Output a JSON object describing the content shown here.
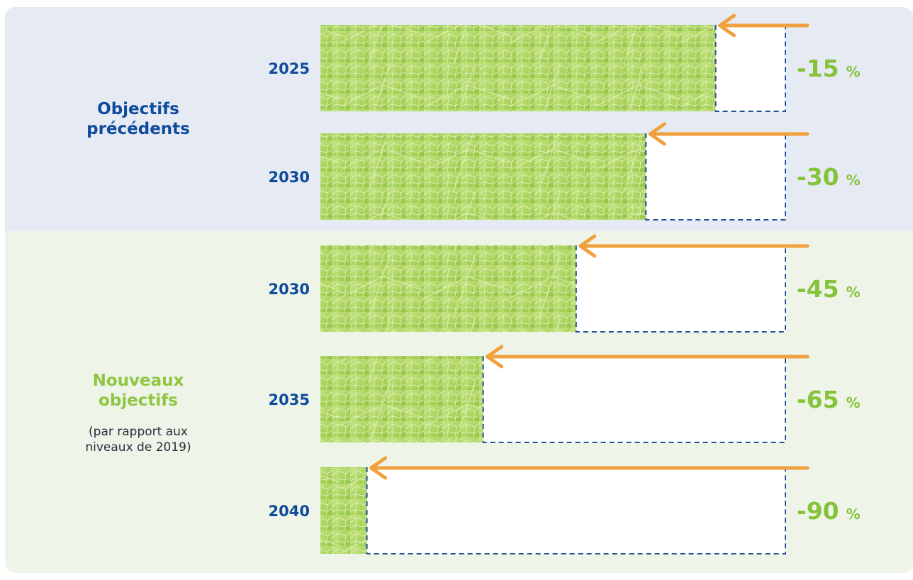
{
  "colors": {
    "top_bg": "#e6ebf3",
    "bottom_bg": "#eef5e8",
    "title_blue": "#0f4a9c",
    "title_green": "#8ec641",
    "leaf_light": "#c8e48a",
    "leaf_mid": "#a9d35a",
    "leaf_dark": "#8abd3c",
    "arrow": "#f0a03c",
    "dash": "#1f4f9a",
    "pct_green": "#86c23a"
  },
  "groups": {
    "previous": {
      "title_line1": "Objectifs",
      "title_line2": "précédents"
    },
    "new": {
      "title_line1": "Nouveaux",
      "title_line2": "objectifs",
      "sub_line1": "(par rapport aux",
      "sub_line2": "niveaux de 2019)"
    }
  },
  "chart_data": {
    "type": "bar",
    "categories": [
      "2025",
      "2030",
      "2030",
      "2035",
      "2040"
    ],
    "series": [
      {
        "values": [
          -15,
          -30,
          -45,
          -65,
          -90
        ]
      }
    ],
    "labels": [
      "-15 %",
      "-30 %",
      "-45 %",
      "-65 %",
      "-90 %"
    ],
    "groups": [
      {
        "name": "Objectifs précédents",
        "rows": [
          0,
          1
        ]
      },
      {
        "name": "Nouveaux objectifs",
        "rows": [
          2,
          3,
          4
        ]
      }
    ],
    "ylim": [
      -100,
      0
    ]
  }
}
